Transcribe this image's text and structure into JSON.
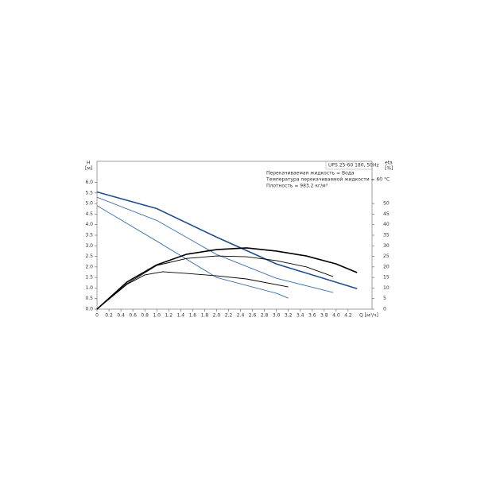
{
  "chart_data": {
    "type": "line",
    "title": "UPS 25-60 180, 50Hz",
    "annotations": [
      "Перекачиваемая жидкость = Вода",
      "Температура перекачиваемой жидкости = 60 °C",
      "Плотность = 983.2 кг/м³"
    ],
    "y_label": "H",
    "y_unit": "[м]",
    "y2_label": "eta",
    "y2_unit": "[%]",
    "x_label": "Q [м³/ч]",
    "xlim": [
      0,
      4.6
    ],
    "xticks": [
      {
        "value": 0,
        "label": "0"
      },
      0.2,
      0.4,
      0.6,
      0.8,
      {
        "value": 1,
        "label": "1.0"
      },
      1.2,
      1.4,
      1.6,
      1.8,
      {
        "value": 2,
        "label": "2.0"
      },
      2.2,
      2.4,
      2.6,
      2.8,
      {
        "value": 3,
        "label": "3.0"
      },
      3.2,
      3.4,
      3.6,
      3.8,
      {
        "value": 4,
        "label": "4.0"
      },
      4.2
    ],
    "ylim": [
      0,
      7
    ],
    "yticks": [
      {
        "value": 0,
        "label": "0.0"
      },
      0.5,
      {
        "value": 1,
        "label": "1.0"
      },
      1.5,
      {
        "value": 2,
        "label": "2.0"
      },
      2.5,
      {
        "value": 3,
        "label": "3.0"
      },
      3.5,
      {
        "value": 4,
        "label": "4.0"
      },
      4.5,
      {
        "value": 5,
        "label": "5.0"
      },
      5.5,
      {
        "value": 6,
        "label": "6.0"
      }
    ],
    "y2lim": [
      0,
      70
    ],
    "y2ticks": [
      0,
      5,
      10,
      15,
      20,
      25,
      30,
      35,
      40,
      45,
      50
    ],
    "series": [
      {
        "color": "#1f4e8c",
        "x": [
          0,
          1,
          2,
          3,
          4.35
        ],
        "values": [
          5.55,
          4.76,
          3.41,
          2.14,
          0.97
        ]
      },
      {
        "color": "#3a6fb0",
        "x": [
          0,
          1,
          2,
          3,
          3.95
        ],
        "values": [
          5.3,
          4.2,
          2.59,
          1.46,
          0.79
        ]
      },
      {
        "color": "#3a6fb0",
        "x": [
          0,
          1,
          2,
          3,
          3.2
        ],
        "values": [
          4.9,
          3.22,
          1.5,
          0.75,
          0.52
        ]
      },
      {
        "color": "#000000",
        "axis": "y2",
        "x": [
          0,
          0.5,
          1,
          1.5,
          2,
          2.5,
          3,
          3.5,
          4,
          4.35
        ],
        "values": [
          0,
          12.8,
          21,
          26,
          28.2,
          29,
          27.5,
          25.2,
          21.4,
          17.3
        ]
      },
      {
        "color": "#000000",
        "axis": "y2",
        "x": [
          0,
          0.5,
          1,
          1.5,
          2,
          2.5,
          3,
          3.5,
          3.95
        ],
        "values": [
          0,
          12,
          20.7,
          24,
          25.2,
          24.8,
          23,
          20,
          15.4
        ]
      },
      {
        "color": "#000000",
        "axis": "y2",
        "x": [
          0,
          0.5,
          0.8,
          1.1,
          1.5,
          2,
          2.5,
          3.2
        ],
        "values": [
          0,
          11.7,
          16.2,
          17.7,
          16.9,
          15.8,
          14.3,
          10.5
        ]
      }
    ]
  }
}
